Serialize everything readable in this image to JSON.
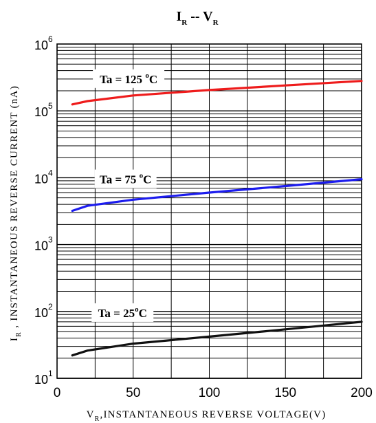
{
  "chart_data": {
    "type": "line",
    "title": {
      "main": "I",
      "main_sub": "R",
      "sep": " -- ",
      "second": "V",
      "second_sub": "R"
    },
    "xlabel": {
      "main": "V",
      "sub": "R",
      "rest": ",INSTANTANEOUS REVERSE VOLTAGE(V)"
    },
    "ylabel": {
      "main": "I",
      "sub": "R",
      "rest": " , INSTANTANEOUS REVERSE CURRENT (nA)"
    },
    "xlim": [
      0,
      200
    ],
    "ylim": [
      10,
      1000000
    ],
    "yscale": "log",
    "xticks": [
      0,
      50,
      100,
      150,
      200
    ],
    "xtick_labels": [
      "0",
      "50",
      "100",
      "150",
      "200"
    ],
    "ytick_labels": [
      {
        "base": "10",
        "exp": "6"
      },
      {
        "base": "10",
        "exp": "5"
      },
      {
        "base": "10",
        "exp": "4"
      },
      {
        "base": "10",
        "exp": "3"
      },
      {
        "base": "10",
        "exp": "2"
      },
      {
        "base": "10",
        "exp": "1"
      }
    ],
    "grid": true,
    "series": [
      {
        "name": "Ta = 125°C",
        "label": {
          "pre": "Ta = 125 ",
          "sup": "o",
          "post": "C"
        },
        "label_at_x": 47,
        "label_at_y": 300000,
        "color": "#ee1c1c",
        "x": [
          10,
          20,
          50,
          100,
          150,
          200
        ],
        "y": [
          125000,
          140000,
          170000,
          205000,
          240000,
          280000
        ]
      },
      {
        "name": "Ta = 75°C",
        "label": {
          "pre": "Ta = 75 ",
          "sup": "o",
          "post": "C"
        },
        "label_at_x": 45,
        "label_at_y": 9500,
        "color": "#1c1cee",
        "x": [
          10,
          20,
          50,
          100,
          150,
          200
        ],
        "y": [
          3200,
          3800,
          4700,
          6000,
          7500,
          9500
        ]
      },
      {
        "name": "Ta = 25°C",
        "label": {
          "pre": "Ta = 25",
          "sup": "o",
          "post": "C"
        },
        "label_at_x": 43,
        "label_at_y": 95,
        "color": "#111111",
        "x": [
          10,
          20,
          50,
          100,
          150,
          200
        ],
        "y": [
          22,
          26,
          33,
          42,
          54,
          70
        ]
      }
    ]
  }
}
